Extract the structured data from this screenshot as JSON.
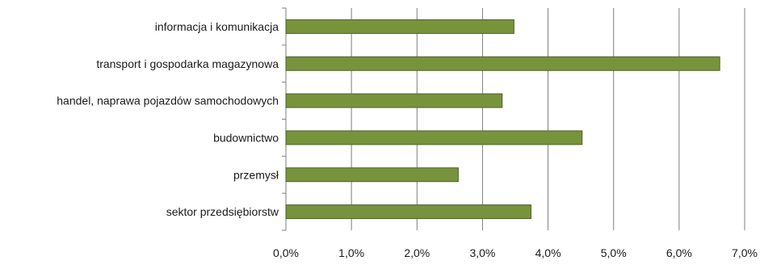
{
  "chart_data": {
    "type": "bar",
    "orientation": "horizontal",
    "categories": [
      "informacja i komunikacja",
      "transport i gospodarka magazynowa",
      "handel, naprawa pojazdów samochodowych",
      "budownictwo",
      "przemysł",
      "sektor przedsiębiorstw"
    ],
    "values": [
      3.48,
      6.62,
      3.3,
      4.52,
      2.63,
      3.74
    ],
    "xlim": [
      0,
      7
    ],
    "x_ticks": [
      0,
      1,
      2,
      3,
      4,
      5,
      6,
      7
    ],
    "x_tick_labels": [
      "0,0%",
      "1,0%",
      "2,0%",
      "3,0%",
      "4,0%",
      "5,0%",
      "6,0%",
      "7,0%"
    ],
    "grid": "vertical",
    "legend": "none",
    "title": "",
    "xlabel": "",
    "ylabel": "",
    "colors": {
      "bar_fill": "#77933c",
      "bar_stroke": "#4f6228",
      "grid": "#7f7f7f",
      "axis": "#7f7f7f"
    }
  }
}
